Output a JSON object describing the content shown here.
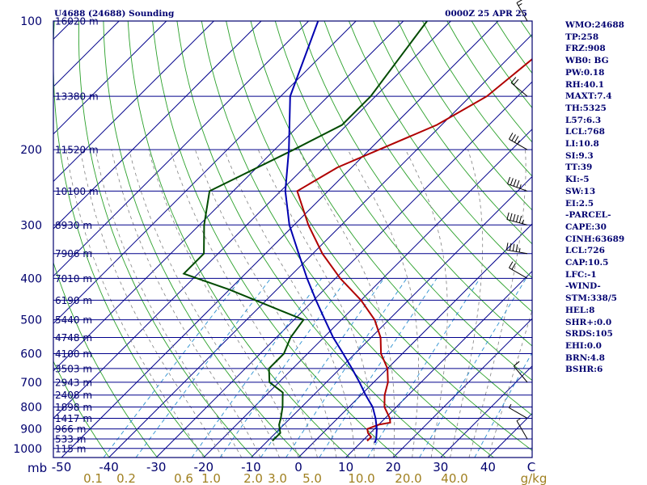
{
  "chart_data": {
    "type": "line",
    "title": "U4688 (24688) Sounding",
    "time_label": "0000Z 25 APR 25",
    "pressure_axis_unit": "mb",
    "temperature_axis_ticks": [
      "-50",
      "-40",
      "-30",
      "-20",
      "-10",
      "0",
      "10",
      "20",
      "30",
      "40",
      "C"
    ],
    "mixing_ratio_ticks": [
      "0.1",
      "0.2",
      "0.6",
      "1.0",
      "2.0",
      "3.0",
      "5.0",
      "10.0",
      "20.0",
      "40.0",
      "g/kg"
    ],
    "pressure_ticks": [
      "100",
      "200",
      "300",
      "400",
      "500",
      "600",
      "700",
      "800",
      "900",
      "1000"
    ],
    "height_labels": [
      {
        "p": 100,
        "label": "16020 m"
      },
      {
        "p": 150,
        "label": "13380 m"
      },
      {
        "p": 200,
        "label": "11520 m"
      },
      {
        "p": 250,
        "label": "10100 m"
      },
      {
        "p": 300,
        "label": "8930 m"
      },
      {
        "p": 350,
        "label": "7906 m"
      },
      {
        "p": 400,
        "label": "7010 m"
      },
      {
        "p": 450,
        "label": "6190 m"
      },
      {
        "p": 500,
        "label": "5440 m"
      },
      {
        "p": 550,
        "label": "4748 m"
      },
      {
        "p": 600,
        "label": "4100 m"
      },
      {
        "p": 650,
        "label": "3503 m"
      },
      {
        "p": 700,
        "label": "2943 m"
      },
      {
        "p": 750,
        "label": "2408 m"
      },
      {
        "p": 800,
        "label": "1898 m"
      },
      {
        "p": 850,
        "label": "1417 m"
      },
      {
        "p": 900,
        "label": "966 m"
      },
      {
        "p": 950,
        "label": "533 m"
      },
      {
        "p": 1000,
        "label": "115 m"
      }
    ],
    "series": [
      {
        "name": "Temperature",
        "color": "#b00000",
        "points": [
          [
            100,
            -33
          ],
          [
            150,
            -36.5
          ],
          [
            175,
            -41
          ],
          [
            200,
            -48
          ],
          [
            220,
            -53
          ],
          [
            250,
            -56.5
          ],
          [
            300,
            -47
          ],
          [
            350,
            -38
          ],
          [
            400,
            -29
          ],
          [
            450,
            -20
          ],
          [
            500,
            -13
          ],
          [
            550,
            -8
          ],
          [
            600,
            -4.5
          ],
          [
            650,
            0
          ],
          [
            700,
            3
          ],
          [
            750,
            5
          ],
          [
            800,
            7.5
          ],
          [
            850,
            11
          ],
          [
            870,
            12
          ],
          [
            880,
            10
          ],
          [
            900,
            8.5
          ],
          [
            920,
            9.5
          ],
          [
            940,
            11
          ],
          [
            960,
            11
          ]
        ]
      },
      {
        "name": "Dewpoint",
        "color": "#004a00",
        "points": [
          [
            100,
            -65
          ],
          [
            150,
            -61
          ],
          [
            175,
            -61
          ],
          [
            200,
            -66
          ],
          [
            250,
            -75
          ],
          [
            300,
            -69
          ],
          [
            350,
            -63
          ],
          [
            390,
            -63
          ],
          [
            425,
            -50
          ],
          [
            475,
            -35
          ],
          [
            500,
            -28
          ],
          [
            550,
            -27
          ],
          [
            600,
            -25
          ],
          [
            650,
            -25
          ],
          [
            700,
            -22
          ],
          [
            740,
            -17
          ],
          [
            760,
            -16
          ],
          [
            800,
            -14
          ],
          [
            850,
            -12
          ],
          [
            880,
            -11
          ],
          [
            900,
            -10
          ],
          [
            920,
            -9
          ],
          [
            940,
            -9
          ],
          [
            960,
            -9
          ]
        ]
      },
      {
        "name": "Parcel",
        "color": "#0000b0",
        "points": [
          [
            100,
            -88
          ],
          [
            150,
            -78
          ],
          [
            200,
            -67
          ],
          [
            250,
            -59
          ],
          [
            300,
            -51
          ],
          [
            350,
            -43
          ],
          [
            400,
            -36
          ],
          [
            450,
            -29.5
          ],
          [
            500,
            -23.5
          ],
          [
            550,
            -18
          ],
          [
            600,
            -12.5
          ],
          [
            650,
            -7.5
          ],
          [
            700,
            -3
          ],
          [
            750,
            1
          ],
          [
            800,
            5
          ],
          [
            850,
            8
          ],
          [
            900,
            10.5
          ],
          [
            950,
            12.5
          ],
          [
            970,
            13
          ]
        ]
      }
    ],
    "wind_barbs": [
      {
        "p": 100,
        "dir": 330,
        "spd": 15
      },
      {
        "p": 150,
        "dir": 310,
        "spd": 20
      },
      {
        "p": 200,
        "dir": 300,
        "spd": 35
      },
      {
        "p": 250,
        "dir": 290,
        "spd": 45
      },
      {
        "p": 300,
        "dir": 285,
        "spd": 55
      },
      {
        "p": 350,
        "dir": 280,
        "spd": 45
      },
      {
        "p": 400,
        "dir": 300,
        "spd": 20
      },
      {
        "p": 700,
        "dir": 320,
        "spd": 10
      },
      {
        "p": 850,
        "dir": 300,
        "spd": 5
      },
      {
        "p": 950,
        "dir": 330,
        "spd": 5
      }
    ],
    "grid": true
  },
  "stats": [
    "WMO:24688",
    "TP:258",
    "FRZ:908",
    "WB0: BG",
    "PW:0.18",
    "RH:40.1",
    "MAXT:7.4",
    "TH:5325",
    "L57:6.3",
    "LCL:768",
    "LI:10.8",
    "SI:9.3",
    "TT:39",
    "KI:-5",
    "SW:13",
    "EI:2.5",
    "-PARCEL-",
    "CAPE:30",
    "CINH:63689",
    "LCL:726",
    "CAP:10.5",
    "LFC:-1",
    "-WIND-",
    "STM:338/5",
    "HEL:8",
    "SHR+:0.0",
    "SRDS:105",
    "EHI:0.0",
    "BRN:4.8",
    "BSHR:6"
  ],
  "colors": {
    "isobar": "#00008b",
    "isotherm": "#00008b",
    "dry_adiabat": "#2aa02a",
    "moist_adiabat": "#808080",
    "mixing_ratio": "#2a8fd0",
    "text": "#000070",
    "mixing_text": "#a08020"
  }
}
